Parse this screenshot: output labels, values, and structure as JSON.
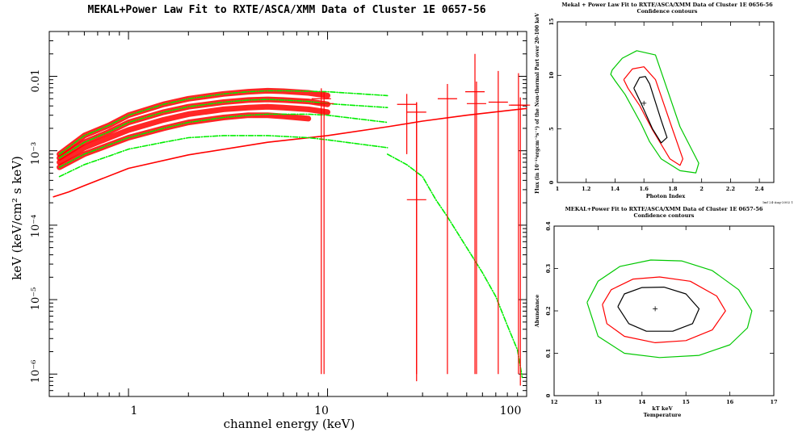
{
  "chart_data": [
    {
      "type": "scatter",
      "title": "MEKAL+Power Law Fit to RXTE/ASCA/XMM Data of Cluster 1E 0657-56",
      "xlabel": "channel energy (keV)",
      "ylabel": "keV (keV/cm² s keV)",
      "xscale": "log",
      "yscale": "log",
      "xlim": [
        0.4,
        100
      ],
      "ylim": [
        5e-07,
        0.04
      ],
      "grid": false,
      "x_ticks": [
        "1",
        "10",
        "100"
      ],
      "y_ticks": [
        "0.01",
        "10⁻³",
        "10⁻⁴",
        "10⁻⁵",
        "10⁻⁶"
      ],
      "y_tick_values": [
        0.01,
        0.001,
        0.0001,
        1e-05,
        1e-06
      ],
      "colors": {
        "data": "#ff0000",
        "model": "#00ee00"
      },
      "series": [
        {
          "role": "data",
          "color": "#ff0000",
          "x": [
            0.45,
            0.6,
            0.8,
            1,
            1.5,
            2,
            3,
            4,
            5,
            6,
            8,
            10
          ],
          "y": [
            0.0009,
            0.0016,
            0.0022,
            0.003,
            0.0042,
            0.005,
            0.0058,
            0.0062,
            0.0064,
            0.0063,
            0.006,
            0.0055
          ]
        },
        {
          "role": "data",
          "color": "#ff0000",
          "x": [
            0.45,
            0.6,
            0.8,
            1,
            1.5,
            2,
            3,
            4,
            5,
            6,
            8,
            10
          ],
          "y": [
            0.0008,
            0.0013,
            0.0018,
            0.0024,
            0.0033,
            0.0039,
            0.0045,
            0.0048,
            0.0049,
            0.0048,
            0.0046,
            0.0042
          ]
        },
        {
          "role": "data",
          "color": "#ff0000",
          "x": [
            0.45,
            0.6,
            0.8,
            1,
            1.5,
            2,
            3,
            4,
            5,
            6,
            8,
            10
          ],
          "y": [
            0.0007,
            0.0011,
            0.0015,
            0.0019,
            0.0026,
            0.0031,
            0.0036,
            0.0038,
            0.0039,
            0.0038,
            0.0036,
            0.0033
          ]
        },
        {
          "role": "data",
          "color": "#ff0000",
          "x": [
            0.45,
            0.6,
            0.8,
            1,
            1.5,
            2,
            3,
            4,
            5,
            6,
            8
          ],
          "y": [
            0.0006,
            0.0009,
            0.0012,
            0.0015,
            0.002,
            0.0024,
            0.0028,
            0.003,
            0.003,
            0.0029,
            0.0027
          ]
        },
        {
          "role": "model",
          "color": "#ff0000",
          "x": [
            0.42,
            0.5,
            0.6,
            1,
            2,
            5,
            10,
            20,
            30,
            50,
            100
          ],
          "y": [
            0.00024,
            0.00028,
            0.00034,
            0.00058,
            0.00088,
            0.0013,
            0.0016,
            0.0021,
            0.0025,
            0.003,
            0.0037
          ]
        },
        {
          "role": "model",
          "color": "#00ee00",
          "x": [
            0.45,
            0.6,
            0.8,
            1,
            1.5,
            2,
            3,
            4,
            5,
            6,
            8,
            10,
            20
          ],
          "y": [
            0.0009,
            0.0016,
            0.0022,
            0.003,
            0.0042,
            0.005,
            0.0058,
            0.0062,
            0.0064,
            0.0064,
            0.0063,
            0.0062,
            0.0055
          ]
        },
        {
          "role": "model",
          "color": "#00ee00",
          "x": [
            0.45,
            0.6,
            0.8,
            1,
            1.5,
            2,
            3,
            4,
            5,
            6,
            8,
            10,
            20
          ],
          "y": [
            0.0008,
            0.0013,
            0.0018,
            0.0024,
            0.0033,
            0.0039,
            0.0045,
            0.0048,
            0.0049,
            0.0048,
            0.0046,
            0.0043,
            0.0038
          ]
        },
        {
          "role": "model",
          "color": "#00ee00",
          "x": [
            0.45,
            0.6,
            0.8,
            1,
            1.5,
            2,
            3,
            4,
            5,
            6,
            8,
            10,
            20
          ],
          "y": [
            0.0006,
            0.0009,
            0.0012,
            0.0015,
            0.002,
            0.0024,
            0.0028,
            0.003,
            0.0031,
            0.0031,
            0.0031,
            0.003,
            0.0024
          ]
        },
        {
          "role": "model",
          "color": "#00ee00",
          "x": [
            0.45,
            0.6,
            0.8,
            1,
            1.5,
            2,
            3,
            5,
            8,
            10,
            20
          ],
          "y": [
            0.00045,
            0.00065,
            0.00085,
            0.00105,
            0.0013,
            0.0015,
            0.0016,
            0.0016,
            0.0015,
            0.0014,
            0.0011
          ]
        },
        {
          "role": "model",
          "color": "#00ee00",
          "x": [
            20,
            25,
            30,
            35,
            40,
            50,
            60,
            70,
            80,
            90,
            95
          ],
          "y": [
            0.0009,
            0.00065,
            0.00045,
            0.00022,
            0.00013,
            5e-05,
            2.3e-05,
            1.1e-05,
            4.5e-06,
            2.1e-06,
            9e-07
          ]
        }
      ],
      "errorbars": [
        {
          "x": 9.3,
          "y": 0.005,
          "ylo": 1e-06,
          "yhi": 0.0069
        },
        {
          "x": 9.6,
          "y": 0.0043,
          "ylo": 1e-06,
          "yhi": 0.0062
        },
        {
          "x": 25,
          "y": 0.0042,
          "ylo": 0.0009,
          "yhi": 0.0058
        },
        {
          "x": 28,
          "y": 0.00022,
          "ylo": 8e-07,
          "yhi": 0.0045
        },
        {
          "x": 28,
          "y": 0.0033,
          "ylo": 1e-06,
          "yhi": 0.0044
        },
        {
          "x": 40,
          "y": 0.005,
          "ylo": 1e-06,
          "yhi": 0.0079
        },
        {
          "x": 55,
          "y": 0.0062,
          "ylo": 1e-06,
          "yhi": 0.02
        },
        {
          "x": 56,
          "y": 0.0043,
          "ylo": 1e-06,
          "yhi": 0.0085
        },
        {
          "x": 72,
          "y": 0.0045,
          "ylo": 1e-06,
          "yhi": 0.0118
        },
        {
          "x": 91,
          "y": 0.0041,
          "ylo": 1e-06,
          "yhi": 0.011
        },
        {
          "x": 93,
          "y": 0.0041,
          "ylo": 7e-07,
          "yhi": 0.0052
        }
      ]
    },
    {
      "type": "line",
      "title": "Mekal + Power Law Fit to RXTE/ASCA/XMM Data of Cluster 1E 0656-56",
      "subtitle": "Confidence contours",
      "xlabel": "Photon Index",
      "ylabel": "Flux (in 10⁻¹²ergcm⁻²s⁻¹) of the Non-thermal Part over 20-100 keV",
      "xlim": [
        1,
        2.5
      ],
      "ylim": [
        0,
        15
      ],
      "x_ticks": [
        "1",
        "1.2",
        "1.4",
        "1.6",
        "1.8",
        "2",
        "2.2",
        "2.4"
      ],
      "y_ticks": [
        "0",
        "5",
        "10",
        "15"
      ],
      "best_fit": {
        "x": 1.6,
        "y": 7.4
      },
      "stamp": "lmf 24-Aug-2002 1",
      "series": [
        {
          "name": "",
          "color": "#00c800",
          "x": [
            1.38,
            1.45,
            1.55,
            1.68,
            1.85,
            1.98,
            1.96,
            1.85,
            1.72,
            1.64,
            1.58,
            1.47,
            1.4,
            1.37,
            1.38
          ],
          "y": [
            10.5,
            11.6,
            12.3,
            11.9,
            5.2,
            1.8,
            0.9,
            1.1,
            2.2,
            3.8,
            5.5,
            8.2,
            9.5,
            10.1,
            10.5
          ]
        },
        {
          "name": "",
          "color": "#ff0000",
          "x": [
            1.46,
            1.52,
            1.6,
            1.68,
            1.8,
            1.87,
            1.85,
            1.78,
            1.66,
            1.57,
            1.49,
            1.46
          ],
          "y": [
            9.6,
            10.6,
            10.8,
            9.6,
            4.9,
            2.2,
            1.6,
            2.2,
            4.9,
            7.2,
            8.8,
            9.6
          ]
        },
        {
          "name": "",
          "color": "#000000",
          "x": [
            1.53,
            1.57,
            1.61,
            1.64,
            1.72,
            1.76,
            1.72,
            1.66,
            1.58,
            1.53
          ],
          "y": [
            8.8,
            9.8,
            9.9,
            9.2,
            5.8,
            4.2,
            3.7,
            5.0,
            7.4,
            8.8
          ]
        }
      ]
    },
    {
      "type": "line",
      "title": "MEKAL+Power Fit to RXTE/ASCA/XMM Data of Cluster 1E 0657-56",
      "subtitle": "Confidence contours",
      "xlabel": "Temperature",
      "xlabel2": "kT     keV",
      "ylabel": "Abundance",
      "xlim": [
        12,
        17
      ],
      "ylim": [
        0,
        0.4
      ],
      "x_ticks": [
        "12",
        "13",
        "14",
        "15",
        "16",
        "17"
      ],
      "y_ticks": [
        "0",
        "0.1",
        "0.2",
        "0.3",
        "0.4"
      ],
      "best_fit": {
        "x": 14.3,
        "y": 0.205
      },
      "series": [
        {
          "name": "",
          "color": "#00c800",
          "x": [
            12.75,
            13.0,
            13.5,
            14.2,
            14.9,
            15.6,
            16.2,
            16.5,
            16.4,
            16.0,
            15.3,
            14.4,
            13.6,
            13.0,
            12.75
          ],
          "y": [
            0.22,
            0.27,
            0.305,
            0.32,
            0.318,
            0.295,
            0.25,
            0.2,
            0.16,
            0.12,
            0.095,
            0.09,
            0.1,
            0.14,
            0.22
          ]
        },
        {
          "name": "",
          "color": "#ff0000",
          "x": [
            13.1,
            13.3,
            13.8,
            14.4,
            15.1,
            15.7,
            15.9,
            15.6,
            15.0,
            14.3,
            13.6,
            13.2,
            13.1
          ],
          "y": [
            0.215,
            0.25,
            0.275,
            0.28,
            0.27,
            0.235,
            0.2,
            0.155,
            0.13,
            0.125,
            0.14,
            0.17,
            0.215
          ]
        },
        {
          "name": "",
          "color": "#000000",
          "x": [
            13.45,
            13.6,
            14.0,
            14.5,
            15.0,
            15.3,
            15.15,
            14.7,
            14.1,
            13.7,
            13.45
          ],
          "y": [
            0.21,
            0.24,
            0.255,
            0.256,
            0.24,
            0.205,
            0.17,
            0.152,
            0.152,
            0.17,
            0.21
          ]
        }
      ]
    }
  ]
}
